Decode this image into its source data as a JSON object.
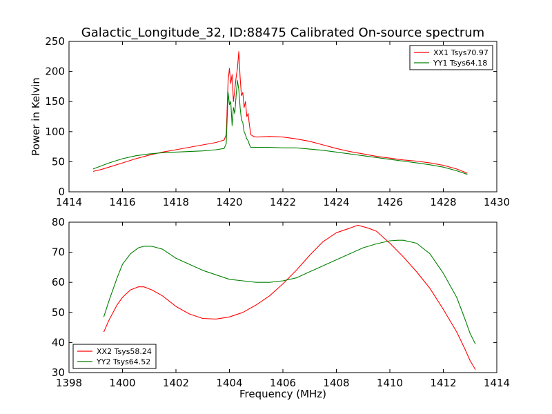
{
  "figure_title": "Galactic_Longitude_32, ID:88475 Calibrated On-source spectrum",
  "colors": {
    "XX": "#ff0000",
    "YY": "#008000"
  },
  "chart_data": [
    {
      "type": "line",
      "ylabel": "Power in Kelvin",
      "xlabel": "",
      "xlim": [
        1414,
        1430
      ],
      "ylim": [
        0,
        250
      ],
      "x_ticks": [
        1414,
        1416,
        1418,
        1420,
        1422,
        1424,
        1426,
        1428,
        1430
      ],
      "y_ticks": [
        0,
        50,
        100,
        150,
        200,
        250
      ],
      "legend_position": "top-right",
      "grid": false,
      "series": [
        {
          "name": "XX1 Tsys70.97",
          "color": "#ff0000",
          "x": [
            1414.9,
            1415.2,
            1415.5,
            1416.0,
            1416.5,
            1417.0,
            1417.5,
            1418.0,
            1418.5,
            1419.0,
            1419.5,
            1419.8,
            1419.88,
            1419.95,
            1420.0,
            1420.05,
            1420.1,
            1420.15,
            1420.2,
            1420.25,
            1420.3,
            1420.35,
            1420.4,
            1420.45,
            1420.5,
            1420.55,
            1420.6,
            1420.65,
            1420.7,
            1420.75,
            1420.8,
            1420.9,
            1421.0,
            1421.5,
            1422.0,
            1422.5,
            1423.0,
            1423.5,
            1424.0,
            1424.5,
            1425.0,
            1425.5,
            1426.0,
            1426.5,
            1427.0,
            1427.5,
            1428.0,
            1428.5,
            1428.9
          ],
          "values": [
            34,
            37,
            41,
            48,
            55,
            61,
            66,
            70,
            74,
            78,
            82,
            86,
            95,
            185,
            205,
            180,
            195,
            150,
            170,
            190,
            205,
            233,
            190,
            160,
            165,
            140,
            150,
            125,
            130,
            110,
            95,
            92,
            91,
            92,
            91,
            88,
            84,
            78,
            72,
            67,
            63,
            59,
            56,
            53,
            51,
            48,
            44,
            38,
            31
          ]
        },
        {
          "name": "YY1 Tsys64.18",
          "color": "#008000",
          "x": [
            1414.9,
            1415.2,
            1415.5,
            1416.0,
            1416.5,
            1417.0,
            1417.5,
            1418.0,
            1418.5,
            1419.0,
            1419.5,
            1419.8,
            1419.88,
            1419.95,
            1420.0,
            1420.05,
            1420.1,
            1420.15,
            1420.2,
            1420.25,
            1420.3,
            1420.35,
            1420.4,
            1420.45,
            1420.5,
            1420.55,
            1420.6,
            1420.65,
            1420.7,
            1420.75,
            1420.8,
            1420.9,
            1421.0,
            1421.5,
            1422.0,
            1422.5,
            1423.0,
            1423.5,
            1424.0,
            1424.5,
            1425.0,
            1425.5,
            1426.0,
            1426.5,
            1427.0,
            1427.5,
            1428.0,
            1428.5,
            1428.9
          ],
          "values": [
            38,
            43,
            48,
            55,
            60,
            63,
            65,
            66,
            67,
            68,
            70,
            72,
            80,
            165,
            145,
            150,
            110,
            140,
            130,
            160,
            185,
            170,
            140,
            120,
            115,
            100,
            95,
            88,
            85,
            78,
            74,
            74,
            74,
            74,
            73,
            73,
            71,
            69,
            66,
            63,
            60,
            57,
            54,
            51,
            48,
            45,
            41,
            35,
            29
          ]
        }
      ]
    },
    {
      "type": "line",
      "ylabel": "",
      "xlabel": "Frequency (MHz)",
      "xlim": [
        1398,
        1414
      ],
      "ylim": [
        30,
        80
      ],
      "x_ticks": [
        1398,
        1400,
        1402,
        1404,
        1406,
        1408,
        1410,
        1412,
        1414
      ],
      "y_ticks": [
        30,
        40,
        50,
        60,
        70,
        80
      ],
      "legend_position": "bottom-left",
      "grid": false,
      "series": [
        {
          "name": "XX2 Tsys58.24",
          "color": "#ff0000",
          "x": [
            1399.3,
            1399.5,
            1399.8,
            1400.0,
            1400.3,
            1400.6,
            1400.8,
            1401.1,
            1401.5,
            1402.0,
            1402.5,
            1403.0,
            1403.5,
            1404.0,
            1404.5,
            1405.0,
            1405.5,
            1406.0,
            1406.5,
            1407.0,
            1407.5,
            1408.0,
            1408.5,
            1408.8,
            1409.2,
            1409.5,
            1410.0,
            1410.5,
            1411.0,
            1411.5,
            1412.0,
            1412.5,
            1412.8,
            1413.0,
            1413.2
          ],
          "values": [
            43.5,
            47.5,
            52.5,
            55.0,
            57.5,
            58.5,
            58.5,
            57.5,
            55.5,
            52.0,
            49.5,
            48.0,
            47.8,
            48.5,
            50.0,
            52.5,
            55.5,
            59.5,
            64.0,
            69.0,
            73.5,
            76.5,
            78.0,
            79.0,
            78.0,
            77.0,
            73.0,
            68.5,
            63.5,
            58.0,
            51.0,
            43.5,
            38.0,
            34.0,
            31.0
          ]
        },
        {
          "name": "YY2 Tsys64.52",
          "color": "#008000",
          "x": [
            1399.3,
            1399.5,
            1399.8,
            1400.0,
            1400.3,
            1400.6,
            1400.8,
            1401.1,
            1401.5,
            1402.0,
            1402.5,
            1403.0,
            1403.5,
            1404.0,
            1404.5,
            1405.0,
            1405.5,
            1406.0,
            1406.5,
            1407.0,
            1407.5,
            1408.0,
            1408.5,
            1409.0,
            1409.5,
            1410.0,
            1410.3,
            1410.5,
            1411.0,
            1411.5,
            1412.0,
            1412.5,
            1412.8,
            1413.0,
            1413.2
          ],
          "values": [
            48.5,
            54.0,
            61.5,
            66.0,
            69.5,
            71.5,
            72.0,
            72.0,
            71.0,
            68.0,
            66.0,
            64.0,
            62.5,
            61.0,
            60.5,
            60.0,
            60.0,
            60.5,
            61.5,
            63.5,
            65.5,
            67.5,
            69.5,
            71.5,
            72.8,
            73.8,
            74.0,
            74.0,
            73.0,
            69.5,
            63.0,
            55.0,
            48.0,
            43.0,
            39.5
          ]
        }
      ]
    }
  ]
}
